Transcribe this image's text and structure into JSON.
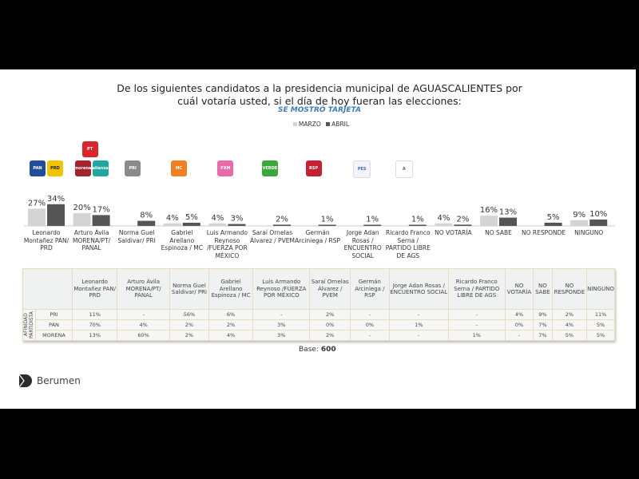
{
  "title_line1": "De los siguientes candidatos a la presidencia municipal de AGUASCALIENTES por",
  "title_line2": "cuál votaría usted, si el día de hoy fueran las elecciones:",
  "subtitle": "SE MOSTRÓ TARJETA",
  "base_label": "Base:",
  "base_value": "600",
  "brand": "Berumen",
  "logos": [
    {
      "name": "pan",
      "text": "PAN",
      "color": "#1d4f9c",
      "cat": 0,
      "dx": -11
    },
    {
      "name": "prd",
      "text": "PRD",
      "color": "#f2c400",
      "cat": 0,
      "dx": 11
    },
    {
      "name": "morena",
      "text": "morena",
      "color": "#a5232b",
      "cat": 1,
      "dx": -11
    },
    {
      "name": "nueva-alianza",
      "text": "alianza",
      "color": "#1fa7a0",
      "cat": 1,
      "dx": 11
    },
    {
      "name": "pt",
      "text": "PT",
      "color": "#d9262c",
      "cat": 1,
      "dx": -2,
      "top": true
    },
    {
      "name": "pri",
      "text": "PRI",
      "color": "#8a8a8a",
      "cat": 2,
      "dx": -5
    },
    {
      "name": "mc",
      "text": "MC",
      "color": "#f08020",
      "cat": 3,
      "dx": -4
    },
    {
      "name": "fuerza-por-mexico",
      "text": "FXM",
      "color": "#e86aa8",
      "cat": 4,
      "dx": -2
    },
    {
      "name": "pvem",
      "text": "VERDE",
      "color": "#3aa83a",
      "cat": 5,
      "dx": -3
    },
    {
      "name": "rsp",
      "text": "RSP",
      "color": "#c8202f",
      "cat": 6,
      "dx": -5
    },
    {
      "name": "encuentro-social",
      "text": "PES",
      "color": "#f4f4fa",
      "cat": 7,
      "dx": -2
    },
    {
      "name": "partido-libre-ags",
      "text": "A",
      "color": "#ffffff",
      "cat": 8,
      "dx": -6
    }
  ],
  "chart_data": {
    "type": "bar",
    "categories": [
      "Leonardo Montañez PAN/ PRD",
      "Arturo Ávila MORENA/PT/ PANAL",
      "Norma Guel Saldivar/ PRI",
      "Gabriel Arellano Espinoza / MC",
      "Luis Armando Reynoso /FUERZA POR MÉXICO",
      "Saraí Ornelas Álvarez / PVEM",
      "Germán Arciniega / RSP",
      "Jorge Adan Rosas / ENCUENTRO SOCIAL",
      "Ricardo Franco Serna / PARTIDO LIBRE DE AGS",
      "NO VOTARÍA",
      "NO SABE",
      "NO RESPONDE",
      "NINGUNO"
    ],
    "series": [
      {
        "name": "MARZO",
        "color": "#d4d4d4",
        "values": [
          27,
          20,
          null,
          4,
          4,
          null,
          null,
          null,
          null,
          4,
          16,
          null,
          9
        ]
      },
      {
        "name": "ABRIL",
        "color": "#555555",
        "values": [
          34,
          17,
          8,
          5,
          3,
          2,
          1,
          1,
          1,
          2,
          13,
          5,
          10
        ]
      }
    ],
    "legend": "top-center",
    "grid": false
  },
  "table": {
    "row_group_label": "AFINIDAD PARTIDISTA",
    "columns": [
      "Leonardo Montañez PAN/ PRD",
      "Arturo Ávila MORENA/PT/ PANAL",
      "Norma Guel Saldivar/ PRI",
      "Gabriel Arellano Espinoza / MC",
      "Luis Armando Reynoso /FUERZA POR MÉXICO",
      "Saraí Ornelas Álvarez / PVEM",
      "Germán Arciniega / RSP",
      "Jorge Adan Rosas / ENCUENTRO SOCIAL",
      "Ricardo Franco Serna / PARTIDO LIBRE DE AGS",
      "NO VOTARÍA",
      "NO SABE",
      "NO RESPONDE",
      "NINGUNO"
    ],
    "rows": [
      {
        "label": "PRI",
        "values": [
          "11%",
          "-",
          "56%",
          "6%",
          "-",
          "2%",
          "-",
          "-",
          "-",
          "4%",
          "9%",
          "2%",
          "11%"
        ]
      },
      {
        "label": "PAN",
        "values": [
          "70%",
          "4%",
          "2%",
          "2%",
          "3%",
          "0%",
          "0%",
          "1%",
          "-",
          "0%",
          "7%",
          "4%",
          "5%"
        ]
      },
      {
        "label": "MORENA",
        "values": [
          "13%",
          "60%",
          "2%",
          "4%",
          "3%",
          "2%",
          "-",
          "-",
          "1%",
          "-",
          "7%",
          "5%",
          "5%"
        ]
      }
    ]
  }
}
